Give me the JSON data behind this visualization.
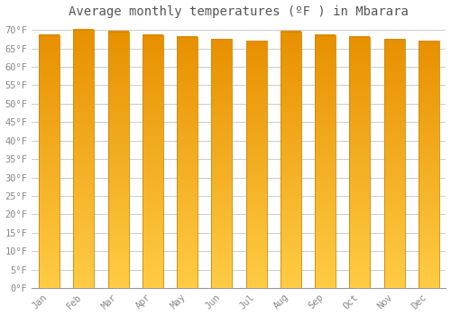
{
  "title": "Average monthly temperatures (ºF ) in Mbarara",
  "months": [
    "Jan",
    "Feb",
    "Mar",
    "Apr",
    "May",
    "Jun",
    "Jul",
    "Aug",
    "Sep",
    "Oct",
    "Nov",
    "Dec"
  ],
  "values": [
    68.5,
    70.0,
    69.5,
    68.5,
    68.0,
    67.5,
    67.0,
    69.5,
    68.5,
    68.0,
    67.5,
    67.0
  ],
  "bar_color_bottom": "#FFCC44",
  "bar_color_top": "#E89000",
  "bar_edge_color": "#CC8800",
  "background_color": "#FFFFFF",
  "plot_bg_color": "#FFFFFF",
  "grid_color": "#CCCCCC",
  "text_color": "#888888",
  "ylim": [
    0,
    72
  ],
  "yticks": [
    0,
    5,
    10,
    15,
    20,
    25,
    30,
    35,
    40,
    45,
    50,
    55,
    60,
    65,
    70
  ],
  "title_fontsize": 10,
  "tick_fontsize": 7.5,
  "bar_width": 0.6
}
